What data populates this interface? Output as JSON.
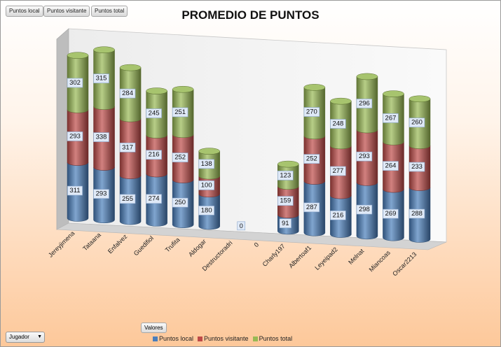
{
  "filters": [
    "Puntos local",
    "Puntos visitante",
    "Puntos total"
  ],
  "axis_field": "Jugador",
  "values_label": "Valores",
  "chart_data": {
    "type": "bar",
    "stacked": true,
    "style": "3d-cylinder",
    "title": "PROMEDIO DE PUNTOS",
    "categories": [
      "Jereyjimena",
      "Tataana",
      "Enfalvez",
      "Guedifiol",
      "Trufita",
      "Aldogar",
      "Destructoradri",
      "0",
      "Charly197",
      "Albertoaf1",
      "Leyeipad2",
      "Melnat",
      "Miancoas",
      "Oscar2213"
    ],
    "series": [
      {
        "name": "Puntos local",
        "color": "#4a7ebb",
        "values": [
          311,
          293,
          255,
          274,
          250,
          180,
          0,
          null,
          91,
          287,
          216,
          298,
          269,
          288
        ]
      },
      {
        "name": "Puntos visitante",
        "color": "#be4b48",
        "values": [
          293,
          338,
          317,
          216,
          252,
          100,
          0,
          null,
          159,
          252,
          277,
          293,
          264,
          233
        ]
      },
      {
        "name": "Puntos total",
        "color": "#98b954",
        "values": [
          302,
          315,
          284,
          245,
          251,
          138,
          0,
          null,
          123,
          270,
          248,
          296,
          267,
          260
        ]
      }
    ],
    "legend": "bottom",
    "grid": false
  }
}
